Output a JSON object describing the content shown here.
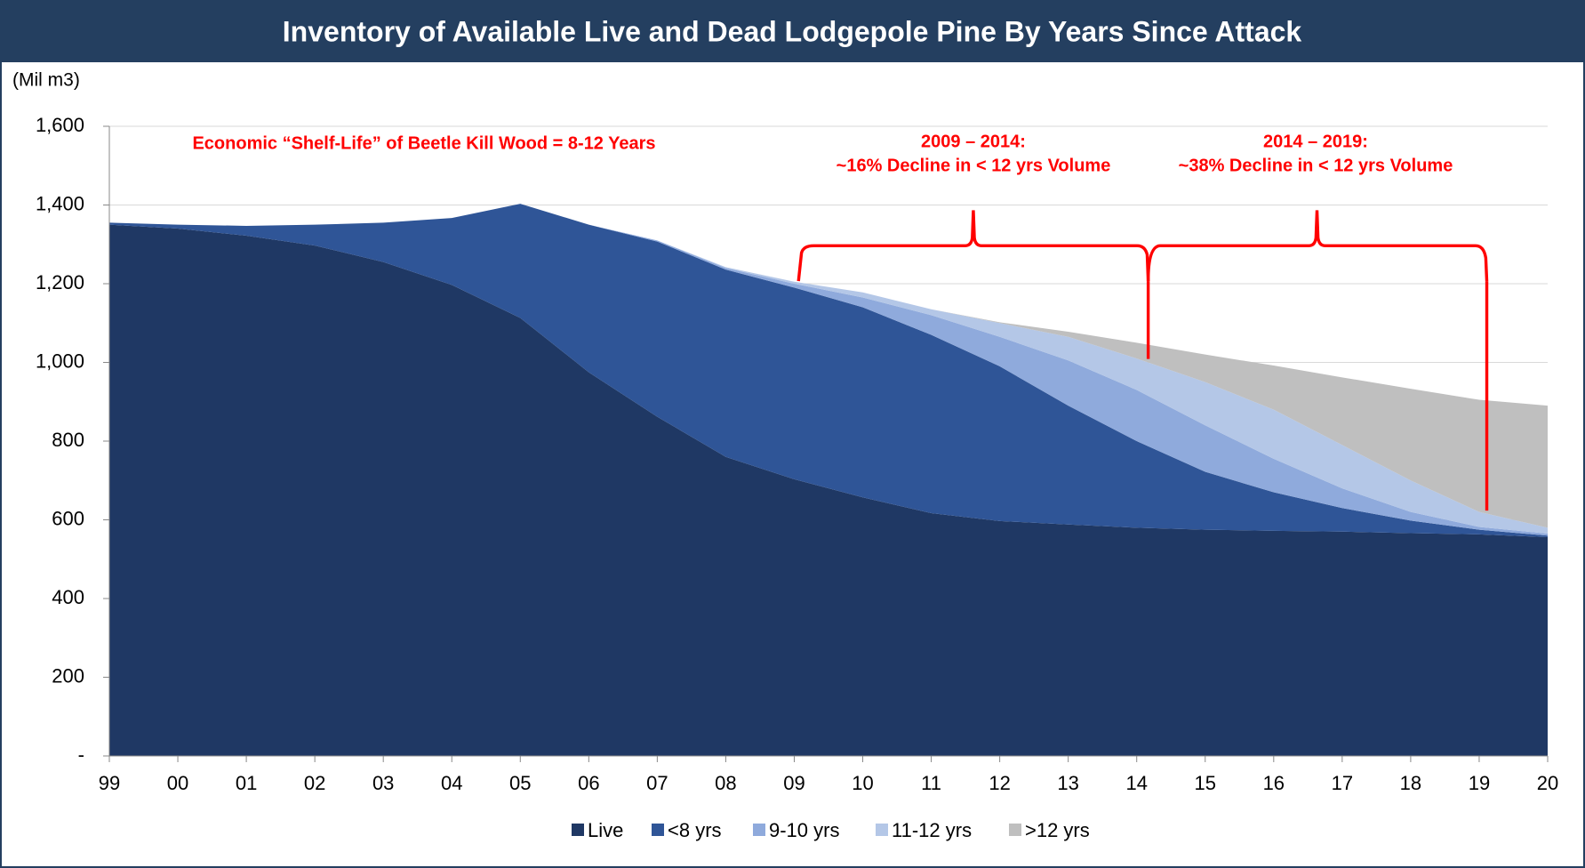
{
  "chart_data": {
    "type": "stacked_area",
    "title": "Inventory of Available Live and Dead Lodgepole Pine By Years Since Attack",
    "y_axis_label": "(Mil m3)",
    "categories": [
      "99",
      "00",
      "01",
      "02",
      "03",
      "04",
      "05",
      "06",
      "07",
      "08",
      "09",
      "10",
      "11",
      "12",
      "13",
      "14",
      "15",
      "16",
      "17",
      "18",
      "19",
      "20"
    ],
    "series": [
      {
        "name": "Live",
        "color": "#1f3864",
        "values": [
          1350,
          1340,
          1322,
          1297,
          1255,
          1197,
          1113,
          975,
          862,
          760,
          703,
          657,
          617,
          597,
          588,
          580,
          575,
          572,
          570,
          566,
          563,
          556
        ]
      },
      {
        "name": "<8 yrs",
        "color": "#2f5597",
        "values": [
          5,
          10,
          25,
          53,
          100,
          170,
          290,
          375,
          445,
          476,
          487,
          483,
          453,
          393,
          302,
          220,
          147,
          98,
          60,
          32,
          12,
          4
        ]
      },
      {
        "name": "9-10 yrs",
        "color": "#8faadc",
        "values": [
          0,
          0,
          0,
          0,
          0,
          0,
          0,
          0,
          3,
          4,
          10,
          25,
          50,
          75,
          115,
          130,
          118,
          85,
          50,
          22,
          7,
          5
        ]
      },
      {
        "name": "11-12 yrs",
        "color": "#b4c7e7",
        "values": [
          0,
          0,
          0,
          0,
          0,
          0,
          0,
          0,
          0,
          2,
          5,
          13,
          15,
          35,
          60,
          80,
          110,
          125,
          110,
          80,
          38,
          15
        ]
      },
      {
        "name": ">12 yrs",
        "color": "#bfbfbf",
        "values": [
          0,
          0,
          0,
          0,
          0,
          0,
          0,
          0,
          0,
          0,
          0,
          0,
          0,
          2,
          13,
          40,
          70,
          112,
          172,
          233,
          285,
          310
        ]
      }
    ],
    "ylim": [
      0,
      1600
    ],
    "yticks": [
      {
        "value": 0,
        "label": "-"
      },
      200,
      400,
      600,
      800,
      {
        "value": 1000,
        "label": "1,000"
      },
      {
        "value": 1200,
        "label": "1,200"
      },
      {
        "value": 1400,
        "label": "1,400"
      },
      {
        "value": 1600,
        "label": "1,600"
      }
    ],
    "grid": true,
    "legend": "bottom",
    "annotations": [
      "Economic “Shelf-Life” of Beetle Kill Wood = 8-12 Years",
      "2009 – 2014:",
      "~16% Decline in < 12 yrs Volume",
      "2014 – 2019:",
      "~38% Decline in < 12 yrs Volume"
    ]
  }
}
